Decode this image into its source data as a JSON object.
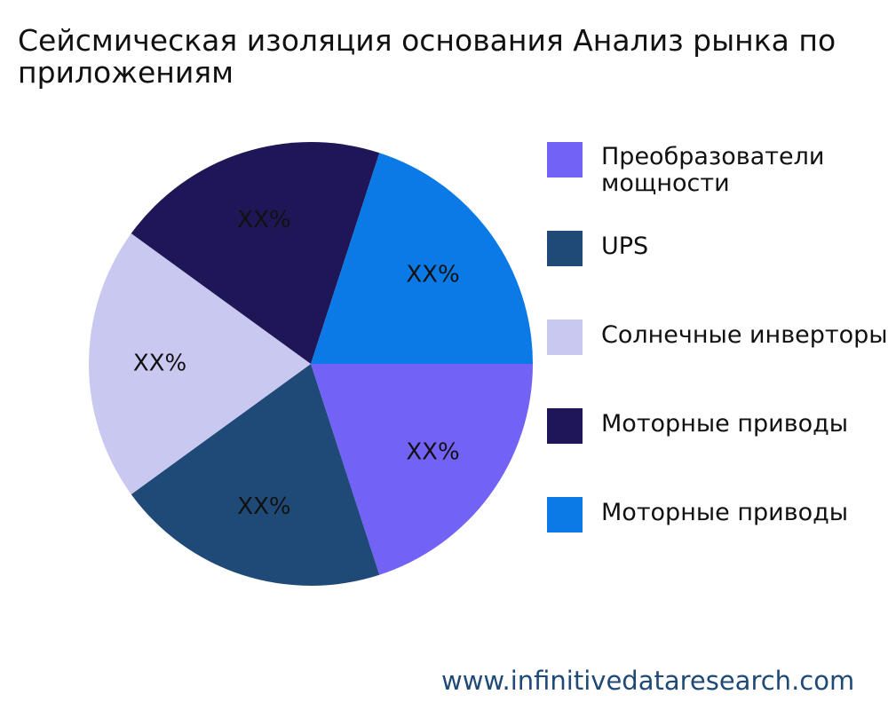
{
  "chart_data": {
    "type": "pie",
    "title_lines": [
      "Сейсмическая изоляция основания Анализ рынка по",
      "приложениям"
    ],
    "slices": [
      {
        "label": "Преобразователи мощности",
        "value": 20,
        "data_label": "XX%",
        "color": "#7262f5"
      },
      {
        "label": "UPS",
        "value": 20,
        "data_label": "XX%",
        "color": "#1f4a78"
      },
      {
        "label": "Солнечные инверторы",
        "value": 20,
        "data_label": "XX%",
        "color": "#c9c8f0"
      },
      {
        "label": "Моторные приводы",
        "value": 20,
        "data_label": "XX%",
        "color": "#1e1657"
      },
      {
        "label": "Моторные приводы",
        "value": 20,
        "data_label": "XX%",
        "color": "#0b79e6"
      }
    ],
    "legend_position": "right"
  },
  "legend": {
    "items": [
      {
        "label": "Преобразователи мощности",
        "color": "#7262f5"
      },
      {
        "label": "UPS",
        "color": "#1f4a78"
      },
      {
        "label": "Солнечные инверторы",
        "color": "#c9c8f0"
      },
      {
        "label": "Моторные приводы",
        "color": "#1e1657"
      },
      {
        "label": "Моторные приводы",
        "color": "#0b79e6"
      }
    ]
  },
  "source": "www.infinitivedataresearch.com"
}
